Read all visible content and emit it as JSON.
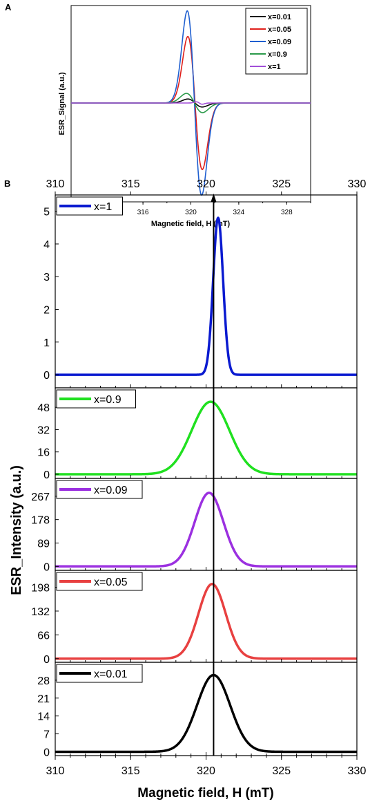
{
  "figure": {
    "panel_a_label": "A",
    "panel_b_label": "B"
  },
  "chart_data": [
    {
      "panel": "A",
      "type": "line",
      "xlabel": "Magnetic field, H (mT)",
      "ylabel": "ESR_Signal  (a.u.)",
      "xlim": [
        310,
        330
      ],
      "xticks": [
        312,
        316,
        320,
        324,
        328
      ],
      "x_tick_labels": [
        "312",
        "316",
        "320",
        "324",
        "328"
      ],
      "yticks_shown": false,
      "legend_position": "top-right",
      "series": [
        {
          "name": "x=0.01",
          "color": "#000000",
          "center": 320.35,
          "amplitude": 5.0,
          "width": 0.85
        },
        {
          "name": "x=0.05",
          "color": "#e0201b",
          "center": 320.35,
          "amplitude": 83.0,
          "width": 0.85
        },
        {
          "name": "x=0.09",
          "color": "#1f5fd0",
          "center": 320.3,
          "amplitude": 115.0,
          "width": 0.85
        },
        {
          "name": "x=0.9",
          "color": "#2a9a4a",
          "center": 320.3,
          "amplitude": 12.0,
          "width": 0.95
        },
        {
          "name": "x=1",
          "color": "#a24fd8",
          "center": 320.7,
          "amplitude": 1.5,
          "width": 0.35
        }
      ]
    },
    {
      "panel": "B",
      "type": "line",
      "xlabel": "Magnetic field, H (mT)",
      "ylabel": "ESR_Intensity  (a.u.)",
      "xlim": [
        310,
        330
      ],
      "xticks": [
        310,
        315,
        320,
        325,
        330
      ],
      "x_tick_labels": [
        "310",
        "315",
        "320",
        "325",
        "330"
      ],
      "top_axis_tick_labels": [
        "310",
        "315",
        "320",
        "325",
        "330"
      ],
      "reference_line_x": 320.5,
      "legend_position": "top-left",
      "subplots": [
        {
          "name": "x=1",
          "color": "#0a1ad0",
          "center": 320.8,
          "sigma": 0.33,
          "peak": 4.8,
          "ylim": [
            -0.4,
            5.5
          ],
          "yticks": [
            0,
            1,
            2,
            3,
            4,
            5
          ],
          "ytick_labels": [
            "0",
            "1",
            "2",
            "3",
            "4",
            "5"
          ]
        },
        {
          "name": "x=0.9",
          "color": "#20e020",
          "center": 320.3,
          "sigma": 1.25,
          "peak": 52,
          "ylim": [
            -3,
            62
          ],
          "yticks": [
            0,
            16,
            32,
            48
          ],
          "ytick_labels": [
            "0",
            "16",
            "32",
            "48"
          ]
        },
        {
          "name": "x=0.09",
          "color": "#9b30e0",
          "center": 320.2,
          "sigma": 0.95,
          "peak": 280,
          "ylim": [
            -15,
            335
          ],
          "yticks": [
            0,
            89,
            178,
            267
          ],
          "ytick_labels": [
            "0",
            "89",
            "178",
            "267"
          ]
        },
        {
          "name": "x=0.05",
          "color": "#e84040",
          "center": 320.4,
          "sigma": 0.9,
          "peak": 207,
          "ylim": [
            -10,
            245
          ],
          "yticks": [
            0,
            66,
            132,
            198
          ],
          "ytick_labels": [
            "0",
            "66",
            "132",
            "198"
          ]
        },
        {
          "name": "x=0.01",
          "color": "#000000",
          "center": 320.5,
          "sigma": 1.1,
          "peak": 30,
          "ylim": [
            -1.5,
            35
          ],
          "yticks": [
            0,
            7,
            14,
            21,
            28
          ],
          "ytick_labels": [
            "0",
            "7",
            "14",
            "21",
            "28"
          ]
        }
      ]
    }
  ]
}
